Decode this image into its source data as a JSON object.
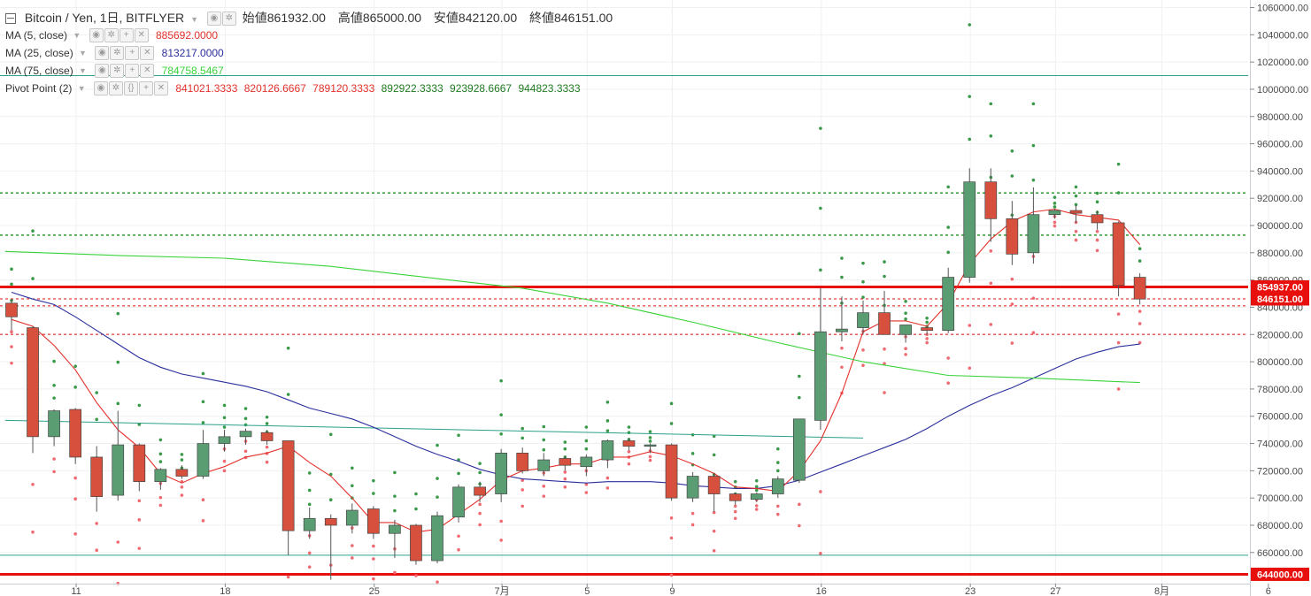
{
  "title": {
    "symbol": "Bitcoin / Yen, 1日, BITFLYER",
    "ohlc": [
      {
        "label": "始値",
        "value": "861932.00"
      },
      {
        "label": "高値",
        "value": "865000.00"
      },
      {
        "label": "安値",
        "value": "842120.00"
      },
      {
        "label": "終値",
        "value": "846151.00"
      }
    ]
  },
  "indicators": [
    {
      "name": "MA (5, close)",
      "values": [
        "885692.0000"
      ],
      "colors": [
        "#e4312b"
      ]
    },
    {
      "name": "MA (25, close)",
      "values": [
        "813217.0000"
      ],
      "colors": [
        "#2b2f9b"
      ]
    },
    {
      "name": "MA (75, close)",
      "values": [
        "784758.5467"
      ],
      "colors": [
        "#39d339"
      ]
    },
    {
      "name": "Pivot Point (2)",
      "values": [
        "841021.3333",
        "820126.6667",
        "789120.3333",
        "892922.3333",
        "923928.6667",
        "944823.3333"
      ],
      "colors": [
        "#e4312b",
        "#e4312b",
        "#e4312b",
        "#1f7a1f",
        "#1f7a1f",
        "#1f7a1f"
      ]
    }
  ],
  "price_labels": [
    {
      "value": "854937.00",
      "color": "#e8100c"
    },
    {
      "value": "846151.00",
      "color": "#e8100c"
    },
    {
      "value": "644000.00",
      "color": "#e8100c"
    }
  ],
  "chart_data": {
    "type": "candlestick",
    "ylim": [
      635000,
      1063000
    ],
    "yticks": [
      "660000.00",
      "680000.00",
      "700000.00",
      "720000.00",
      "740000.00",
      "760000.00",
      "780000.00",
      "800000.00",
      "820000.00",
      "840000.00",
      "860000.00",
      "880000.00",
      "900000.00",
      "920000.00",
      "940000.00",
      "960000.00",
      "980000.00",
      "1000000.00",
      "1020000.00",
      "1040000.00",
      "1060000.00"
    ],
    "xticks": [
      {
        "label": "11",
        "day": 1
      },
      {
        "label": "18",
        "day": 8
      },
      {
        "label": "25",
        "day": 15
      },
      {
        "label": "7月",
        "day": 21
      },
      {
        "label": "5",
        "day": 25
      },
      {
        "label": "9",
        "day": 29
      },
      {
        "label": "16",
        "day": 36
      },
      {
        "label": "23",
        "day": 43
      },
      {
        "label": "27",
        "day": 47
      },
      {
        "label": "8月",
        "day": 52
      },
      {
        "label": "6",
        "day": 57
      }
    ],
    "candles": [
      [
        843000,
        846000,
        823000,
        833000
      ],
      [
        825000,
        826000,
        733000,
        745000
      ],
      [
        745000,
        765000,
        738000,
        764000
      ],
      [
        765000,
        766000,
        725000,
        730000
      ],
      [
        730000,
        738000,
        690000,
        701000
      ],
      [
        702000,
        764000,
        698000,
        739000
      ],
      [
        739000,
        740000,
        705000,
        712000
      ],
      [
        712000,
        722000,
        706000,
        721000
      ],
      [
        721000,
        724000,
        714000,
        716000
      ],
      [
        716000,
        750000,
        714000,
        740000
      ],
      [
        740000,
        750000,
        734000,
        745000
      ],
      [
        745000,
        751000,
        739000,
        749000
      ],
      [
        748000,
        750000,
        739000,
        742000
      ],
      [
        742000,
        742000,
        658000,
        676000
      ],
      [
        676000,
        693000,
        670000,
        685000
      ],
      [
        685000,
        688000,
        640000,
        680000
      ],
      [
        680000,
        696000,
        674000,
        691000
      ],
      [
        692000,
        694000,
        670000,
        674000
      ],
      [
        674000,
        684000,
        656000,
        680000
      ],
      [
        680000,
        681000,
        651000,
        654000
      ],
      [
        654000,
        690000,
        652000,
        687000
      ],
      [
        686000,
        710000,
        682000,
        708000
      ],
      [
        708000,
        712000,
        697000,
        702000
      ],
      [
        703000,
        736000,
        697000,
        733000
      ],
      [
        733000,
        737000,
        718000,
        720000
      ],
      [
        720000,
        733000,
        716000,
        728000
      ],
      [
        729000,
        731000,
        720000,
        724000
      ],
      [
        723000,
        732000,
        716000,
        730000
      ],
      [
        728000,
        743000,
        722000,
        742000
      ],
      [
        742000,
        744000,
        735000,
        738000
      ],
      [
        738000,
        740000,
        733000,
        739000
      ],
      [
        739000,
        740000,
        698000,
        700000
      ],
      [
        700000,
        719000,
        697000,
        716000
      ],
      [
        716000,
        718000,
        690000,
        703000
      ],
      [
        703000,
        704000,
        695000,
        698000
      ],
      [
        699000,
        704000,
        697000,
        703000
      ],
      [
        703000,
        716000,
        700000,
        714000
      ],
      [
        713000,
        758000,
        711000,
        758000
      ],
      [
        757000,
        854000,
        750000,
        822000
      ],
      [
        822000,
        848000,
        815000,
        824000
      ],
      [
        825000,
        845000,
        820000,
        836000
      ],
      [
        836000,
        852000,
        820000,
        820000
      ],
      [
        820000,
        827000,
        814000,
        827000
      ],
      [
        825000,
        826000,
        820000,
        823000
      ],
      [
        823000,
        869000,
        821000,
        862000
      ],
      [
        862000,
        942000,
        858000,
        932000
      ],
      [
        932000,
        942000,
        888000,
        905000
      ],
      [
        905000,
        918000,
        871000,
        879000
      ],
      [
        880000,
        928000,
        872000,
        908000
      ],
      [
        908000,
        912000,
        905000,
        911000
      ],
      [
        911000,
        915000,
        902000,
        909000
      ],
      [
        908000,
        911000,
        897000,
        902000
      ],
      [
        902000,
        903000,
        848000,
        856000
      ],
      [
        862000,
        865000,
        842000,
        846000
      ]
    ],
    "ma5": [
      831000,
      826000,
      812000,
      794000,
      770000,
      750000,
      737000,
      718000,
      711000,
      718000,
      723000,
      730000,
      733000,
      738000,
      726000,
      716000,
      700000,
      682000,
      682000,
      675000,
      677000,
      688000,
      699000,
      713000,
      720000,
      722000,
      725000,
      725000,
      730000,
      730000,
      734000,
      731000,
      725000,
      718000,
      708000,
      707000,
      705000,
      720000,
      742000,
      777000,
      822000,
      830000,
      830000,
      826000,
      843000,
      872000,
      890000,
      903000,
      910000,
      912000,
      908000,
      906000,
      904000,
      886000
    ],
    "ma25": [
      851000,
      846000,
      842000,
      833000,
      823000,
      813000,
      803000,
      796000,
      791000,
      788000,
      785000,
      782000,
      778000,
      772000,
      766000,
      762000,
      758000,
      752000,
      745000,
      738000,
      732000,
      727000,
      721000,
      717000,
      714000,
      713000,
      712000,
      711000,
      712000,
      712000,
      712000,
      711000,
      709000,
      708000,
      707000,
      707000,
      709000,
      713000,
      719000,
      725000,
      731000,
      737000,
      743000,
      751000,
      760000,
      768000,
      775000,
      781000,
      788000,
      795000,
      802000,
      807000,
      811000,
      813000
    ],
    "ma75": [
      {
        "x": -0.3,
        "y": 881000
      },
      {
        "x": 5,
        "y": 878000
      },
      {
        "x": 10,
        "y": 876000
      },
      {
        "x": 15,
        "y": 870000
      },
      {
        "x": 20,
        "y": 861000
      },
      {
        "x": 24,
        "y": 854000
      },
      {
        "x": 28,
        "y": 843000
      },
      {
        "x": 32,
        "y": 829000
      },
      {
        "x": 36,
        "y": 814000
      },
      {
        "x": 40,
        "y": 800000
      },
      {
        "x": 44,
        "y": 790000
      },
      {
        "x": 48,
        "y": 788000
      },
      {
        "x": 53,
        "y": 784758
      }
    ],
    "trendline_green": {
      "x1": -0.3,
      "y1": 757000,
      "x2": 40,
      "y2": 744000
    },
    "hlines": [
      {
        "y": 1010000,
        "color": "#2aa08a",
        "style": "solid",
        "w": 1
      },
      {
        "y": 923928,
        "color": "#1f8f1f",
        "style": "dashed",
        "w": 1.4
      },
      {
        "y": 892922,
        "color": "#1f8f1f",
        "style": "dashed",
        "w": 1.4
      },
      {
        "y": 854937,
        "color": "#e8100c",
        "style": "solid",
        "w": 3
      },
      {
        "y": 846151,
        "color": "#e8100c",
        "style": "dashed",
        "w": 1
      },
      {
        "y": 841021,
        "color": "#e8100c",
        "style": "dashed",
        "w": 1
      },
      {
        "y": 820126,
        "color": "#e8100c",
        "style": "dashed",
        "w": 1
      },
      {
        "y": 658000,
        "color": "#2aa08a",
        "style": "solid",
        "w": 1
      },
      {
        "y": 644000,
        "color": "#e8100c",
        "style": "solid",
        "w": 3
      }
    ],
    "colors": {
      "up": "#5b9d73",
      "down": "#d7503d",
      "wick": "#555555",
      "ma5": "#e4312b",
      "ma25": "#2b2f9b",
      "ma75": "#39d339",
      "trend": "#2aa08a"
    }
  }
}
